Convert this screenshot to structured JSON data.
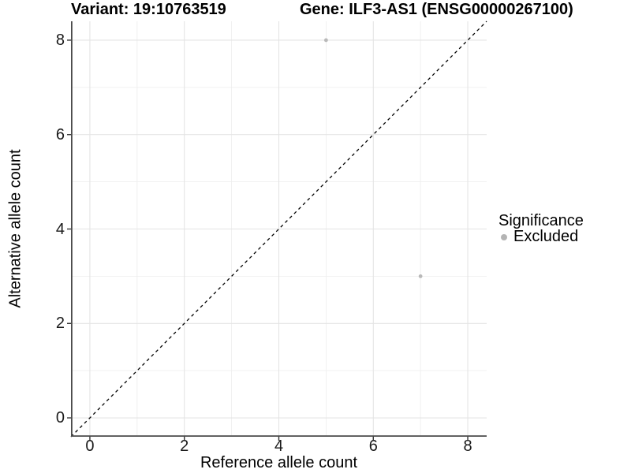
{
  "figure": {
    "background": "#ffffff"
  },
  "titles": {
    "variant": "Variant: 19:10763519",
    "gene": "Gene: ILF3-AS1 (ENSG00000267100)"
  },
  "axes": {
    "x_label": "Reference allele count",
    "y_label": "Alternative allele count"
  },
  "legend": {
    "title": "Significance",
    "items": [
      {
        "label": "Excluded",
        "color": "#b4b4b4"
      }
    ]
  },
  "chart_data": {
    "type": "scatter",
    "title": "Variant: 19:10763519   Gene: ILF3-AS1 (ENSG00000267100)",
    "xlabel": "Reference allele count",
    "ylabel": "Alternative allele count",
    "xlim": [
      -0.4,
      8.4
    ],
    "ylim": [
      -0.4,
      8.4
    ],
    "x_ticks": [
      0,
      2,
      4,
      6,
      8
    ],
    "y_ticks": [
      0,
      2,
      4,
      6,
      8
    ],
    "minor_grid_interval": 1,
    "grid": "major and minor gridlines at every integer 0-8",
    "legend_position": "right",
    "series": [
      {
        "name": "Excluded",
        "color": "#b9b9b9",
        "marker": "circle",
        "points": [
          {
            "x": 5,
            "y": 8
          },
          {
            "x": 7,
            "y": 3
          }
        ]
      }
    ],
    "reference_line": {
      "kind": "identity y=x",
      "style": "dashed",
      "color": "#000000"
    }
  },
  "colors": {
    "grid_major": "#e4e4e4",
    "grid_minor": "#ededed",
    "axis_line": "#4a4a4a",
    "tick_mark": "#333333",
    "point": "#b9b9b9",
    "dashed_line": "#000000"
  }
}
